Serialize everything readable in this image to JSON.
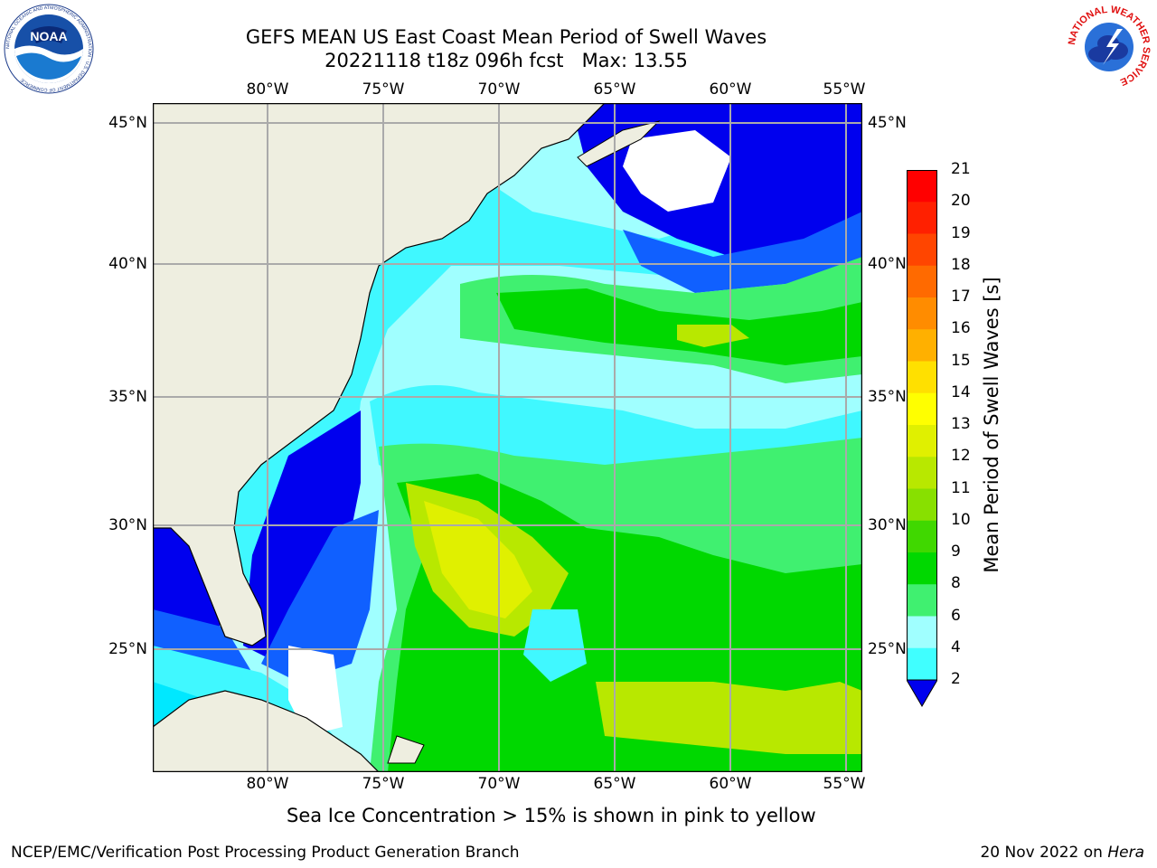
{
  "title": {
    "line1": "GEFS MEAN US East Coast Mean Period of Swell Waves",
    "line2": "20221118 t18z 096h fcst   Max: 13.55"
  },
  "logos": {
    "noaa_text": "NOAA",
    "noaa_ring_text": "NATIONAL OCEANIC AND ATMOSPHERIC ADMINISTRATION · U.S. DEPARTMENT OF COMMERCE",
    "nws_ring_text": "NATIONAL WEATHER SERVICE"
  },
  "axes": {
    "lon_labels": [
      "80°W",
      "75°W",
      "70°W",
      "65°W",
      "60°W",
      "55°W"
    ],
    "lat_labels": [
      "45°N",
      "40°N",
      "35°N",
      "30°N",
      "25°N"
    ]
  },
  "colorbar": {
    "title": "Mean Period of Swell Waves [s]",
    "labels": [
      "21",
      "20",
      "19",
      "18",
      "17",
      "16",
      "15",
      "14",
      "13",
      "12",
      "11",
      "10",
      "9",
      "8",
      "6",
      "4",
      "2"
    ],
    "colors": [
      "#ff0000",
      "#ff2000",
      "#ff4500",
      "#ff6a00",
      "#ff8c00",
      "#ffb000",
      "#ffe000",
      "#ffff00",
      "#e0f000",
      "#b8e800",
      "#88e000",
      "#40d800",
      "#00d800",
      "#40f070",
      "#a0ffff",
      "#40ffff",
      "#00e8ff",
      "#00b0ff",
      "#0070ff",
      "#0000ff"
    ]
  },
  "note": "Sea Ice Concentration > 15% is shown in pink to yellow",
  "footer": {
    "left": "NCEP/EMC/Verification Post Processing Product Generation Branch",
    "right_prefix": "20 Nov 2022 on ",
    "right_host": "Hera"
  },
  "map_colors": {
    "land": "#eeeee0",
    "deep_blue": "#0000ee",
    "blue": "#1060ff",
    "cyan": "#00e8ff",
    "light_cyan": "#40f8ff",
    "pale_cyan": "#a0ffff",
    "light_green": "#40f070",
    "green": "#00d800",
    "yellow_green": "#b8e800",
    "yellow": "#e0f000",
    "grid": "#aaaaaa"
  }
}
